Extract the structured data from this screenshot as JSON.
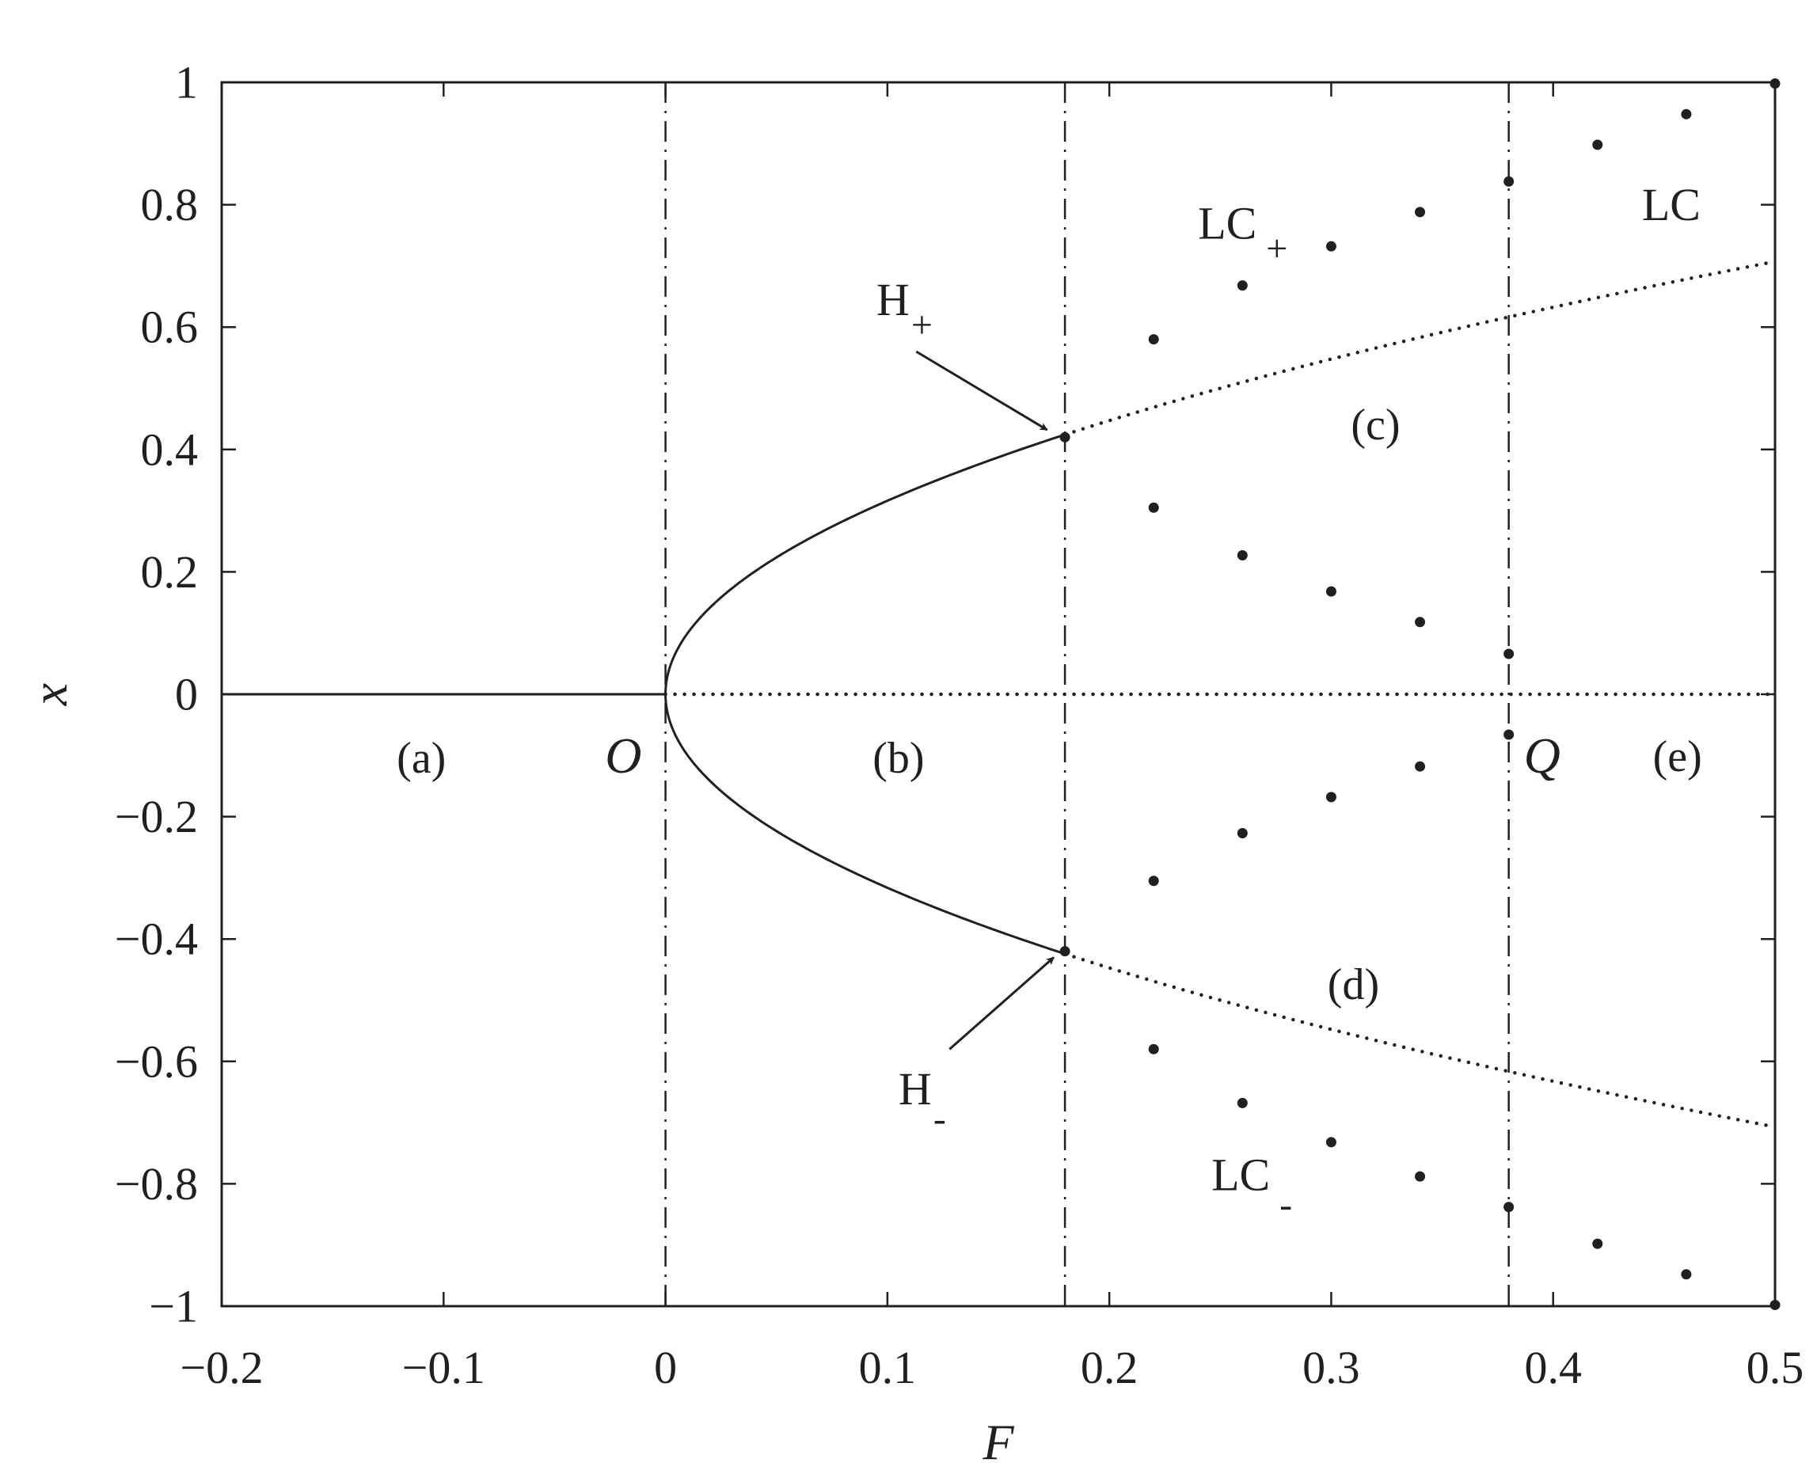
{
  "chart_data": {
    "type": "line",
    "title": "",
    "xlabel": "F",
    "ylabel": "x",
    "xlim": [
      -0.2,
      0.5
    ],
    "ylim": [
      -1,
      1
    ],
    "xticks": [
      -0.2,
      -0.1,
      0,
      0.1,
      0.2,
      0.3,
      0.4,
      0.5
    ],
    "xtick_labels": [
      "−0.2",
      "−0.1",
      "0",
      "0.1",
      "0.2",
      "0.3",
      "0.4",
      "0.5"
    ],
    "yticks": [
      1,
      0.8,
      0.6,
      0.4,
      0.2,
      0,
      -0.2,
      -0.4,
      -0.6,
      -0.8,
      -1
    ],
    "ytick_labels": [
      "1",
      "0.8",
      "0.6",
      "0.4",
      "0.2",
      "0",
      "−0.2",
      "−0.4",
      "−0.6",
      "−0.8",
      "−1"
    ],
    "grid": false,
    "legend": "none",
    "vertical_lines": [
      {
        "x": 0,
        "style": "dash-dot"
      },
      {
        "x": 0.18,
        "style": "dash-dot"
      },
      {
        "x": 0.38,
        "style": "dash-dot"
      }
    ],
    "curves": [
      {
        "id": "stable-zero",
        "style": "solid",
        "x": [
          -0.2,
          0
        ],
        "y": [
          0,
          0
        ]
      },
      {
        "id": "unstable-zero",
        "style": "dotted",
        "x": [
          0,
          0.5
        ],
        "y": [
          0,
          0
        ]
      },
      {
        "id": "stable-upper",
        "style": "solid",
        "formula": "x = sqrt(F)",
        "x_range": [
          0,
          0.18
        ],
        "endpoint_y": 0.42
      },
      {
        "id": "stable-lower",
        "style": "solid",
        "formula": "x = -sqrt(F)",
        "x_range": [
          0,
          0.18
        ],
        "endpoint_y": -0.42
      },
      {
        "id": "unstable-upper",
        "style": "dotted",
        "formula": "x = sqrt(F)",
        "x_range": [
          0.18,
          0.5
        ],
        "endpoint_y": 0.71
      },
      {
        "id": "unstable-lower",
        "style": "dotted",
        "formula": "x = -sqrt(F)",
        "x_range": [
          0.18,
          0.5
        ],
        "endpoint_y": -0.71
      }
    ],
    "hopf_points": [
      {
        "x": 0.18,
        "y": 0.42
      },
      {
        "x": 0.18,
        "y": -0.42
      }
    ],
    "limit_cycle_points": [
      {
        "x": 0.22,
        "y": 0.58
      },
      {
        "x": 0.22,
        "y": 0.305
      },
      {
        "x": 0.22,
        "y": -0.305
      },
      {
        "x": 0.22,
        "y": -0.58
      },
      {
        "x": 0.26,
        "y": 0.668
      },
      {
        "x": 0.26,
        "y": 0.227
      },
      {
        "x": 0.26,
        "y": -0.227
      },
      {
        "x": 0.26,
        "y": -0.668
      },
      {
        "x": 0.3,
        "y": 0.732
      },
      {
        "x": 0.3,
        "y": 0.168
      },
      {
        "x": 0.3,
        "y": -0.168
      },
      {
        "x": 0.3,
        "y": -0.732
      },
      {
        "x": 0.34,
        "y": 0.788
      },
      {
        "x": 0.34,
        "y": 0.118
      },
      {
        "x": 0.34,
        "y": -0.118
      },
      {
        "x": 0.34,
        "y": -0.788
      },
      {
        "x": 0.38,
        "y": 0.838
      },
      {
        "x": 0.38,
        "y": 0.066
      },
      {
        "x": 0.38,
        "y": -0.066
      },
      {
        "x": 0.38,
        "y": -0.838
      },
      {
        "x": 0.42,
        "y": 0.898
      },
      {
        "x": 0.42,
        "y": -0.898
      },
      {
        "x": 0.46,
        "y": 0.948
      },
      {
        "x": 0.46,
        "y": -0.948
      },
      {
        "x": 0.5,
        "y": 0.998
      },
      {
        "x": 0.5,
        "y": -0.998
      }
    ],
    "region_labels": [
      {
        "text": "(a)",
        "x": -0.11,
        "y": -0.105
      },
      {
        "text": "(b)",
        "x": 0.105,
        "y": -0.105
      },
      {
        "text": "(c)",
        "x": 0.32,
        "y": 0.44
      },
      {
        "text": "(d)",
        "x": 0.31,
        "y": -0.475
      },
      {
        "text": "(e)",
        "x": 0.456,
        "y": -0.102
      }
    ],
    "point_labels": [
      {
        "text": "O",
        "x": -0.019,
        "y": -0.1
      },
      {
        "text": "Q",
        "x": 0.395,
        "y": -0.1
      }
    ],
    "annotations": [
      {
        "text": "H",
        "sub": "+",
        "x": 0.095,
        "y": 0.645,
        "arrow_from": [
          0.113,
          0.56
        ],
        "arrow_to": [
          0.172,
          0.432
        ]
      },
      {
        "text": "H",
        "sub": "-",
        "x": 0.105,
        "y": -0.645,
        "arrow_from": [
          0.128,
          -0.58
        ],
        "arrow_to": [
          0.175,
          -0.43
        ]
      },
      {
        "text": "LC",
        "sub": "+",
        "x": 0.24,
        "y": 0.77,
        "arrow_from": null,
        "arrow_to": null
      },
      {
        "text": "LC",
        "sub": "-",
        "x": 0.246,
        "y": -0.785,
        "arrow_from": null,
        "arrow_to": null
      },
      {
        "text": "LC",
        "sub": "",
        "x": 0.44,
        "y": 0.8,
        "arrow_from": null,
        "arrow_to": null
      }
    ]
  }
}
